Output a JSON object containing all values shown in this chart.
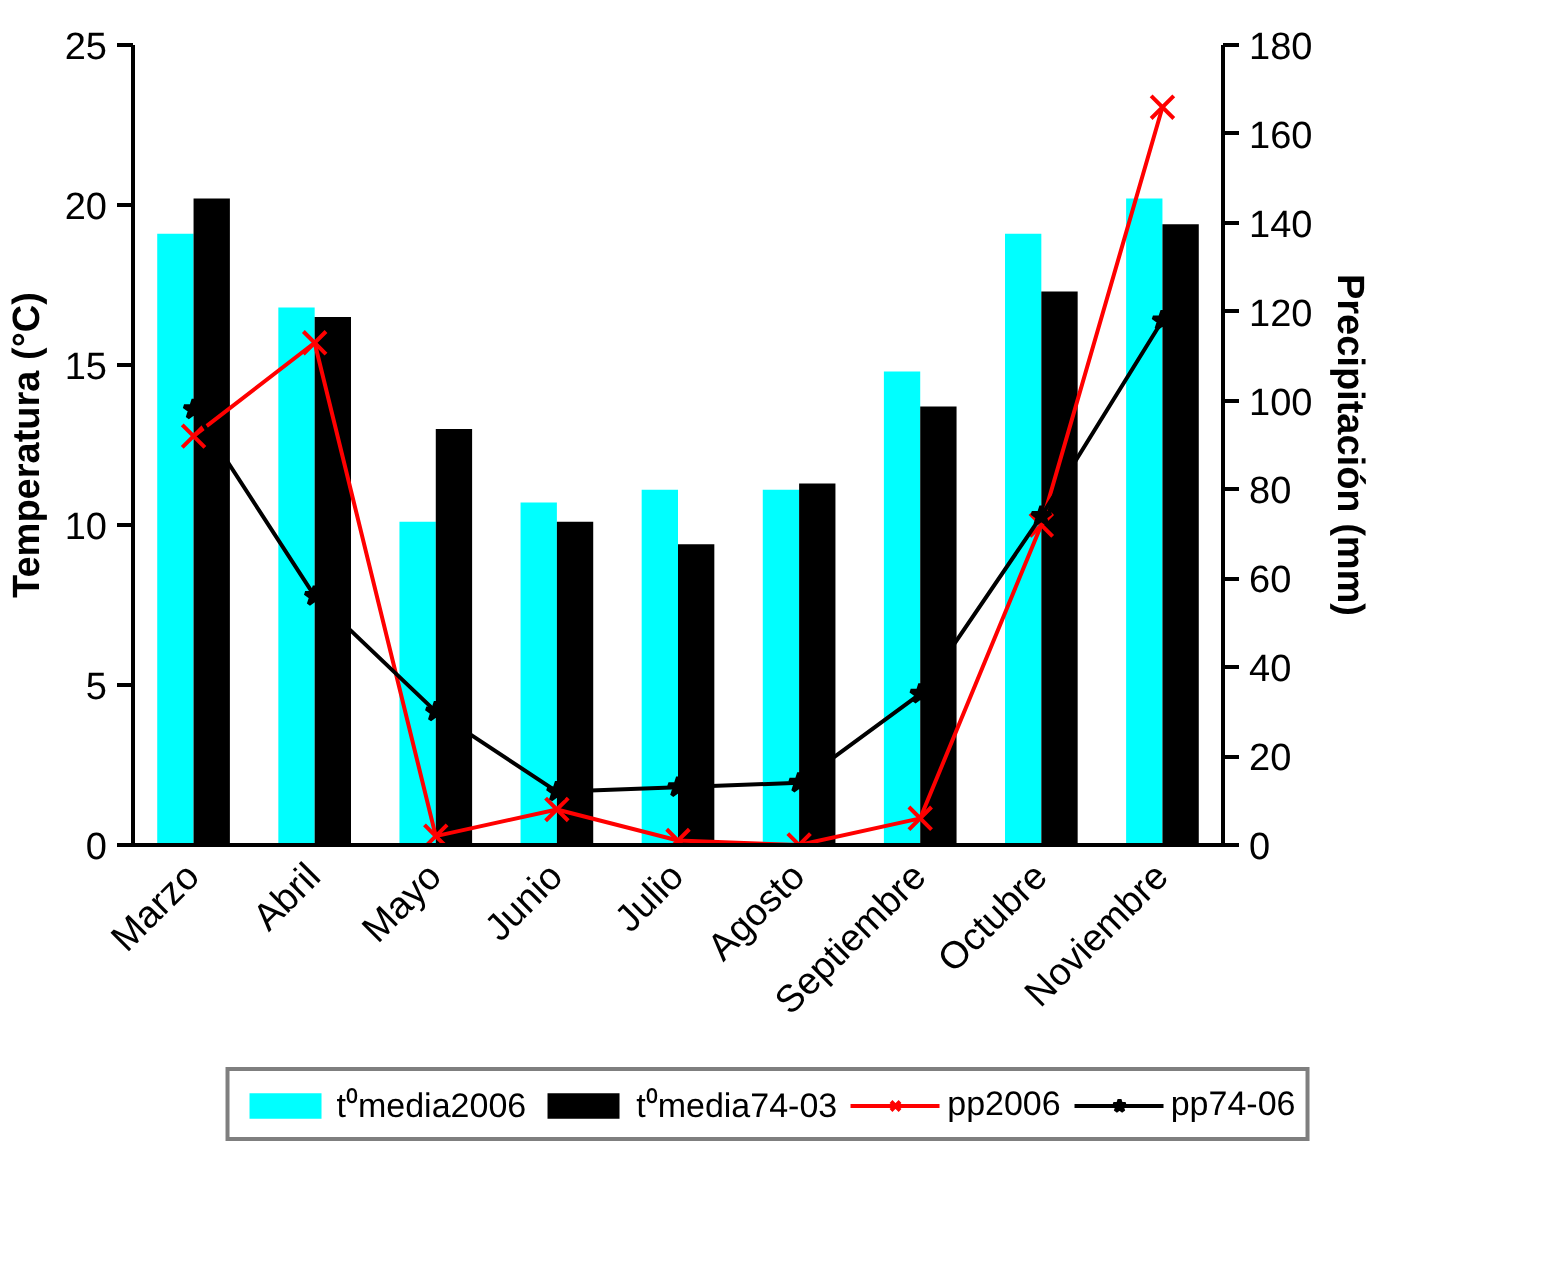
{
  "chart_data": {
    "type": "bar",
    "ylabel": "Temperatura (°C)",
    "y2label": "Precipitación (mm)",
    "categories": [
      "Marzo",
      "Abril",
      "Mayo",
      "Junio",
      "Julio",
      "Agosto",
      "Septiembre",
      "Octubre",
      "Noviembre"
    ],
    "ylim": [
      0,
      25
    ],
    "yticks": [
      0,
      5,
      10,
      15,
      20,
      25
    ],
    "y2lim": [
      0,
      180
    ],
    "y2ticks": [
      0,
      20,
      40,
      60,
      80,
      100,
      120,
      140,
      160,
      180
    ],
    "grid": false,
    "legend": "bottom",
    "series": [
      {
        "name": "t⁰media2006",
        "color": "#00ffff",
        "values": [
          19.1,
          16.8,
          10.1,
          10.7,
          11.1,
          11.1,
          14.8,
          19.1,
          20.2
        ]
      },
      {
        "name": "t⁰media74-03",
        "color": "#000000",
        "values": [
          20.2,
          16.5,
          13.0,
          10.1,
          9.4,
          11.3,
          13.7,
          17.3,
          19.4
        ]
      },
      {
        "name": "pp2006",
        "type": "line",
        "axis": "y2",
        "marker": "cross",
        "color": "#ff0000",
        "values": [
          92,
          113,
          2,
          8,
          1,
          0,
          6,
          72,
          166
        ]
      },
      {
        "name": "pp74-06",
        "type": "line",
        "axis": "y2",
        "marker": "star",
        "color": "#000000",
        "values": [
          98,
          56,
          30,
          12,
          13,
          14,
          34,
          74,
          118
        ]
      }
    ]
  }
}
